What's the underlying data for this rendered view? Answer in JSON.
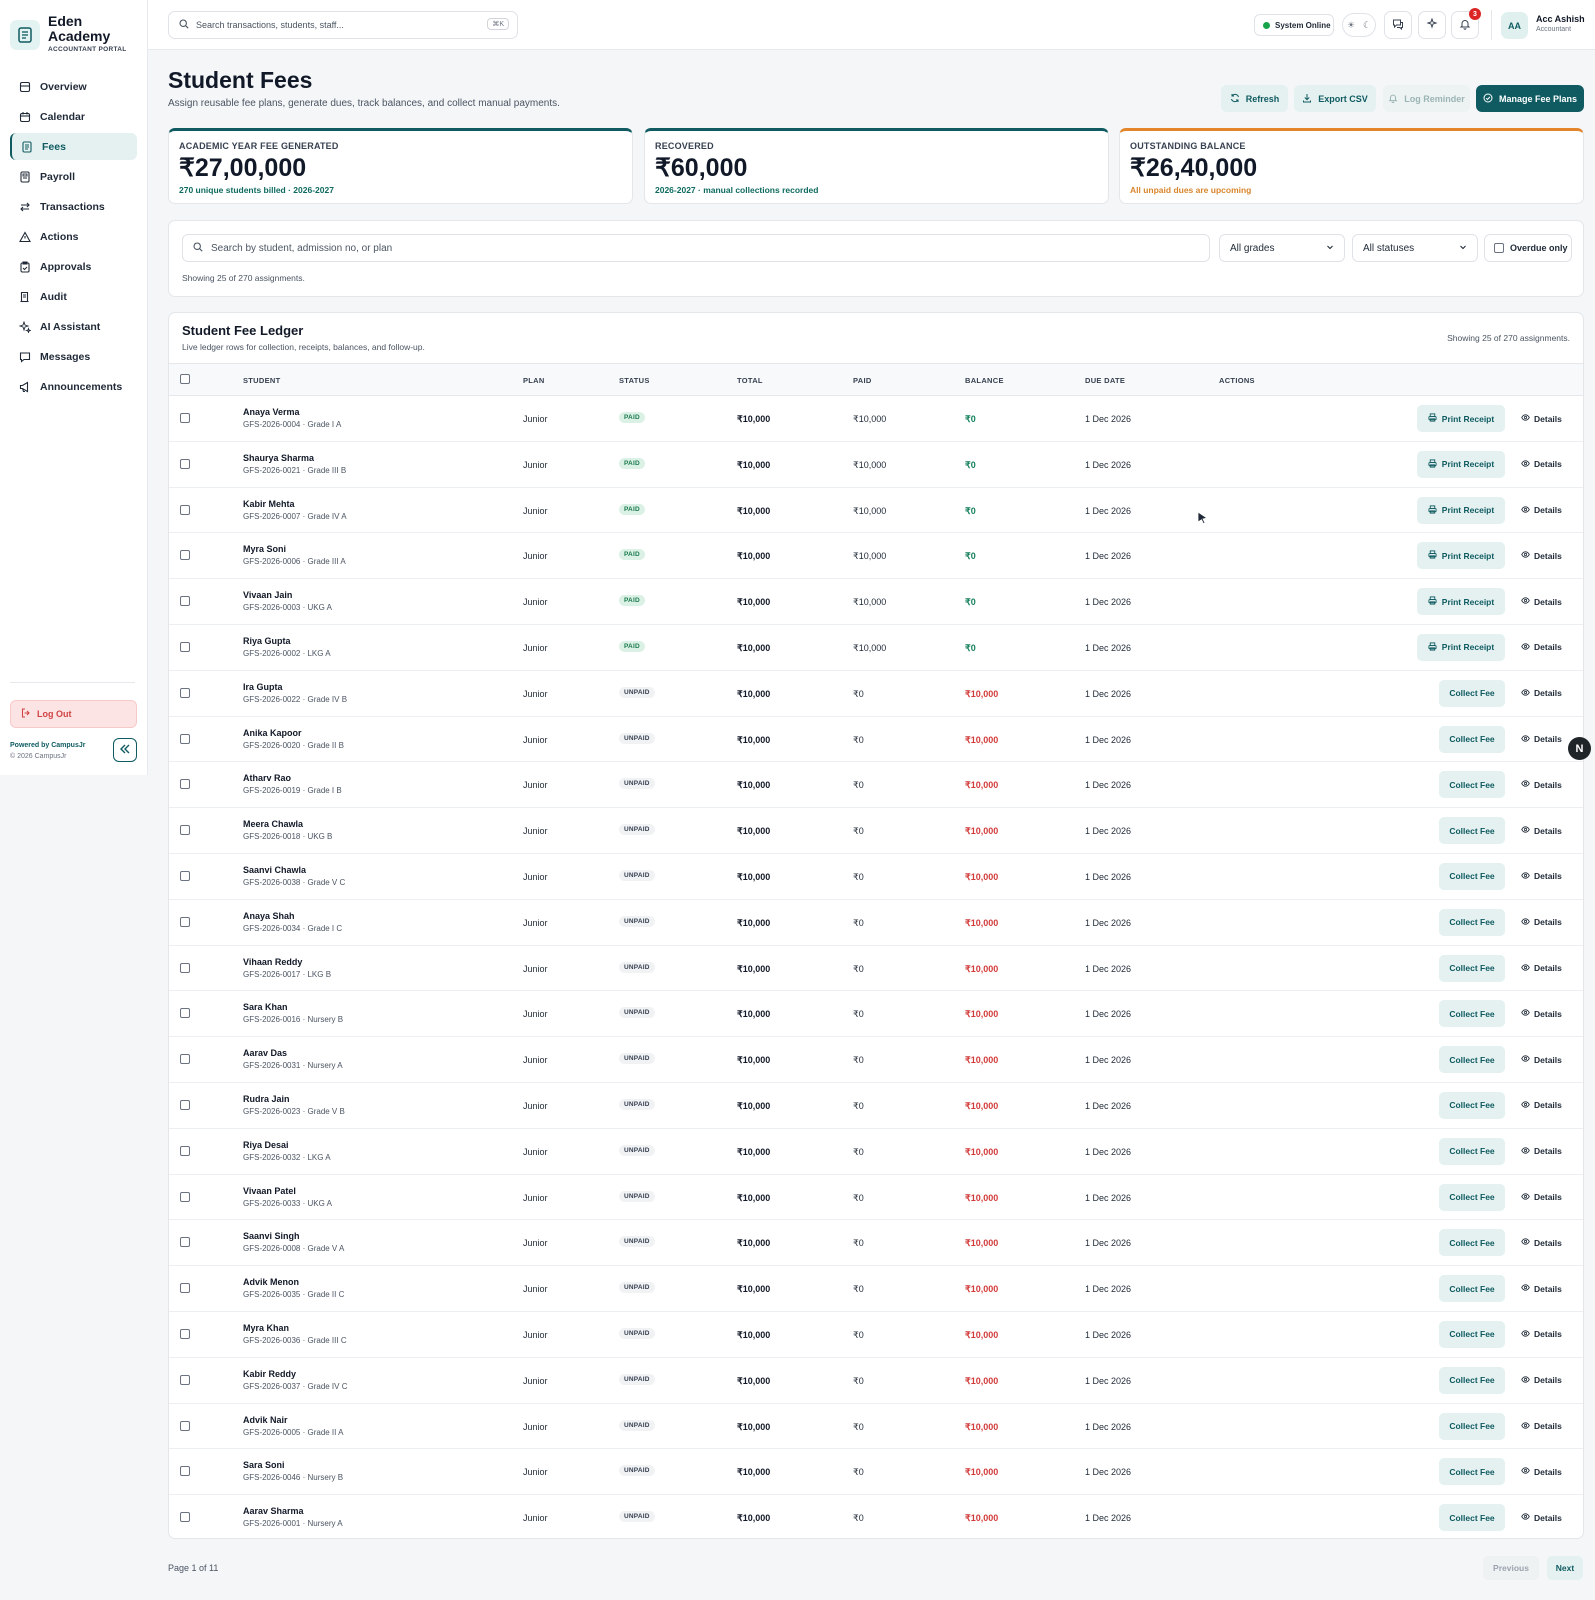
{
  "brand": {
    "name_line1": "Eden",
    "name_line2": "Academy",
    "portal": "ACCOUNTANT PORTAL"
  },
  "sidebar": {
    "items": [
      {
        "label": "Overview",
        "icon": "overview-icon"
      },
      {
        "label": "Calendar",
        "icon": "calendar-icon"
      },
      {
        "label": "Fees",
        "icon": "fees-icon",
        "active": true
      },
      {
        "label": "Payroll",
        "icon": "payroll-icon"
      },
      {
        "label": "Transactions",
        "icon": "transactions-icon"
      },
      {
        "label": "Actions",
        "icon": "warning-icon"
      },
      {
        "label": "Approvals",
        "icon": "clipboard-icon"
      },
      {
        "label": "Audit",
        "icon": "audit-icon"
      },
      {
        "label": "AI Assistant",
        "icon": "sparkles-icon"
      },
      {
        "label": "Messages",
        "icon": "chat-icon"
      },
      {
        "label": "Announcements",
        "icon": "megaphone-icon"
      }
    ],
    "logout": "Log Out",
    "powered_by": "Powered by CampusJr",
    "copyright": "© 2026 CampusJr"
  },
  "topbar": {
    "search_placeholder": "Search transactions, students, staff...",
    "shortcut": "⌘K",
    "system_status": "System Online",
    "notification_count": "3",
    "user_initials": "AA",
    "user_name": "Acc Ashish",
    "user_role": "Accountant"
  },
  "header": {
    "title": "Student Fees",
    "subtitle": "Assign reusable fee plans, generate dues, track balances, and collect manual payments.",
    "buttons": {
      "refresh": "Refresh",
      "export": "Export CSV",
      "log_reminder": "Log Reminder",
      "manage": "Manage Fee Plans"
    }
  },
  "stats": [
    {
      "label": "ACADEMIC YEAR FEE GENERATED",
      "value": "₹27,00,000",
      "note": "270 unique students billed · 2026-2027"
    },
    {
      "label": "RECOVERED",
      "value": "₹60,000",
      "note": "2026-2027 · manual collections recorded"
    },
    {
      "label": "OUTSTANDING BALANCE",
      "value": "₹26,40,000",
      "note": "All unpaid dues are upcoming"
    }
  ],
  "filters": {
    "search_placeholder": "Search by student, admission no, or plan",
    "grade": "All grades",
    "status": "All statuses",
    "overdue_label": "Overdue only",
    "showing": "Showing 25 of 270 assignments."
  },
  "ledger": {
    "title": "Student Fee Ledger",
    "subtitle": "Live ledger rows for collection, receipts, balances, and follow-up.",
    "showing": "Showing 25 of 270 assignments.",
    "columns": [
      "STUDENT",
      "PLAN",
      "STATUS",
      "TOTAL",
      "PAID",
      "BALANCE",
      "DUE DATE",
      "ACTIONS"
    ],
    "details_label": "Details",
    "receipt_label": "Print Receipt",
    "collect_label": "Collect Fee",
    "rows": [
      {
        "name": "Anaya Verma",
        "meta": "GFS-2026-0004 · Grade I A",
        "plan": "Junior",
        "status": "PAID",
        "total": "₹10,000",
        "paid": "₹10,000",
        "balance": "₹0",
        "due": "1 Dec 2026"
      },
      {
        "name": "Shaurya Sharma",
        "meta": "GFS-2026-0021 · Grade III B",
        "plan": "Junior",
        "status": "PAID",
        "total": "₹10,000",
        "paid": "₹10,000",
        "balance": "₹0",
        "due": "1 Dec 2026"
      },
      {
        "name": "Kabir Mehta",
        "meta": "GFS-2026-0007 · Grade IV A",
        "plan": "Junior",
        "status": "PAID",
        "total": "₹10,000",
        "paid": "₹10,000",
        "balance": "₹0",
        "due": "1 Dec 2026"
      },
      {
        "name": "Myra Soni",
        "meta": "GFS-2026-0006 · Grade III A",
        "plan": "Junior",
        "status": "PAID",
        "total": "₹10,000",
        "paid": "₹10,000",
        "balance": "₹0",
        "due": "1 Dec 2026"
      },
      {
        "name": "Vivaan Jain",
        "meta": "GFS-2026-0003 · UKG A",
        "plan": "Junior",
        "status": "PAID",
        "total": "₹10,000",
        "paid": "₹10,000",
        "balance": "₹0",
        "due": "1 Dec 2026"
      },
      {
        "name": "Riya Gupta",
        "meta": "GFS-2026-0002 · LKG A",
        "plan": "Junior",
        "status": "PAID",
        "total": "₹10,000",
        "paid": "₹10,000",
        "balance": "₹0",
        "due": "1 Dec 2026"
      },
      {
        "name": "Ira Gupta",
        "meta": "GFS-2026-0022 · Grade IV B",
        "plan": "Junior",
        "status": "UNPAID",
        "total": "₹10,000",
        "paid": "₹0",
        "balance": "₹10,000",
        "due": "1 Dec 2026"
      },
      {
        "name": "Anika Kapoor",
        "meta": "GFS-2026-0020 · Grade II B",
        "plan": "Junior",
        "status": "UNPAID",
        "total": "₹10,000",
        "paid": "₹0",
        "balance": "₹10,000",
        "due": "1 Dec 2026"
      },
      {
        "name": "Atharv Rao",
        "meta": "GFS-2026-0019 · Grade I B",
        "plan": "Junior",
        "status": "UNPAID",
        "total": "₹10,000",
        "paid": "₹0",
        "balance": "₹10,000",
        "due": "1 Dec 2026"
      },
      {
        "name": "Meera Chawla",
        "meta": "GFS-2026-0018 · UKG B",
        "plan": "Junior",
        "status": "UNPAID",
        "total": "₹10,000",
        "paid": "₹0",
        "balance": "₹10,000",
        "due": "1 Dec 2026"
      },
      {
        "name": "Saanvi Chawla",
        "meta": "GFS-2026-0038 · Grade V C",
        "plan": "Junior",
        "status": "UNPAID",
        "total": "₹10,000",
        "paid": "₹0",
        "balance": "₹10,000",
        "due": "1 Dec 2026"
      },
      {
        "name": "Anaya Shah",
        "meta": "GFS-2026-0034 · Grade I C",
        "plan": "Junior",
        "status": "UNPAID",
        "total": "₹10,000",
        "paid": "₹0",
        "balance": "₹10,000",
        "due": "1 Dec 2026"
      },
      {
        "name": "Vihaan Reddy",
        "meta": "GFS-2026-0017 · LKG B",
        "plan": "Junior",
        "status": "UNPAID",
        "total": "₹10,000",
        "paid": "₹0",
        "balance": "₹10,000",
        "due": "1 Dec 2026"
      },
      {
        "name": "Sara Khan",
        "meta": "GFS-2026-0016 · Nursery B",
        "plan": "Junior",
        "status": "UNPAID",
        "total": "₹10,000",
        "paid": "₹0",
        "balance": "₹10,000",
        "due": "1 Dec 2026"
      },
      {
        "name": "Aarav Das",
        "meta": "GFS-2026-0031 · Nursery A",
        "plan": "Junior",
        "status": "UNPAID",
        "total": "₹10,000",
        "paid": "₹0",
        "balance": "₹10,000",
        "due": "1 Dec 2026"
      },
      {
        "name": "Rudra Jain",
        "meta": "GFS-2026-0023 · Grade V B",
        "plan": "Junior",
        "status": "UNPAID",
        "total": "₹10,000",
        "paid": "₹0",
        "balance": "₹10,000",
        "due": "1 Dec 2026"
      },
      {
        "name": "Riya Desai",
        "meta": "GFS-2026-0032 · LKG A",
        "plan": "Junior",
        "status": "UNPAID",
        "total": "₹10,000",
        "paid": "₹0",
        "balance": "₹10,000",
        "due": "1 Dec 2026"
      },
      {
        "name": "Vivaan Patel",
        "meta": "GFS-2026-0033 · UKG A",
        "plan": "Junior",
        "status": "UNPAID",
        "total": "₹10,000",
        "paid": "₹0",
        "balance": "₹10,000",
        "due": "1 Dec 2026"
      },
      {
        "name": "Saanvi Singh",
        "meta": "GFS-2026-0008 · Grade V A",
        "plan": "Junior",
        "status": "UNPAID",
        "total": "₹10,000",
        "paid": "₹0",
        "balance": "₹10,000",
        "due": "1 Dec 2026"
      },
      {
        "name": "Advik Menon",
        "meta": "GFS-2026-0035 · Grade II C",
        "plan": "Junior",
        "status": "UNPAID",
        "total": "₹10,000",
        "paid": "₹0",
        "balance": "₹10,000",
        "due": "1 Dec 2026"
      },
      {
        "name": "Myra Khan",
        "meta": "GFS-2026-0036 · Grade III C",
        "plan": "Junior",
        "status": "UNPAID",
        "total": "₹10,000",
        "paid": "₹0",
        "balance": "₹10,000",
        "due": "1 Dec 2026"
      },
      {
        "name": "Kabir Reddy",
        "meta": "GFS-2026-0037 · Grade IV C",
        "plan": "Junior",
        "status": "UNPAID",
        "total": "₹10,000",
        "paid": "₹0",
        "balance": "₹10,000",
        "due": "1 Dec 2026"
      },
      {
        "name": "Advik Nair",
        "meta": "GFS-2026-0005 · Grade II A",
        "plan": "Junior",
        "status": "UNPAID",
        "total": "₹10,000",
        "paid": "₹0",
        "balance": "₹10,000",
        "due": "1 Dec 2026"
      },
      {
        "name": "Sara Soni",
        "meta": "GFS-2026-0046 · Nursery B",
        "plan": "Junior",
        "status": "UNPAID",
        "total": "₹10,000",
        "paid": "₹0",
        "balance": "₹10,000",
        "due": "1 Dec 2026"
      },
      {
        "name": "Aarav Sharma",
        "meta": "GFS-2026-0001 · Nursery A",
        "plan": "Junior",
        "status": "UNPAID",
        "total": "₹10,000",
        "paid": "₹0",
        "balance": "₹10,000",
        "due": "1 Dec 2026"
      }
    ]
  },
  "pagination": {
    "info": "Page 1 of 11",
    "prev": "Previous",
    "next": "Next"
  },
  "floating_badge": "N",
  "colors": {
    "primary": "#0f5b61",
    "paid": "#15805a",
    "due": "#d23a3a",
    "warning": "#e3862b"
  }
}
